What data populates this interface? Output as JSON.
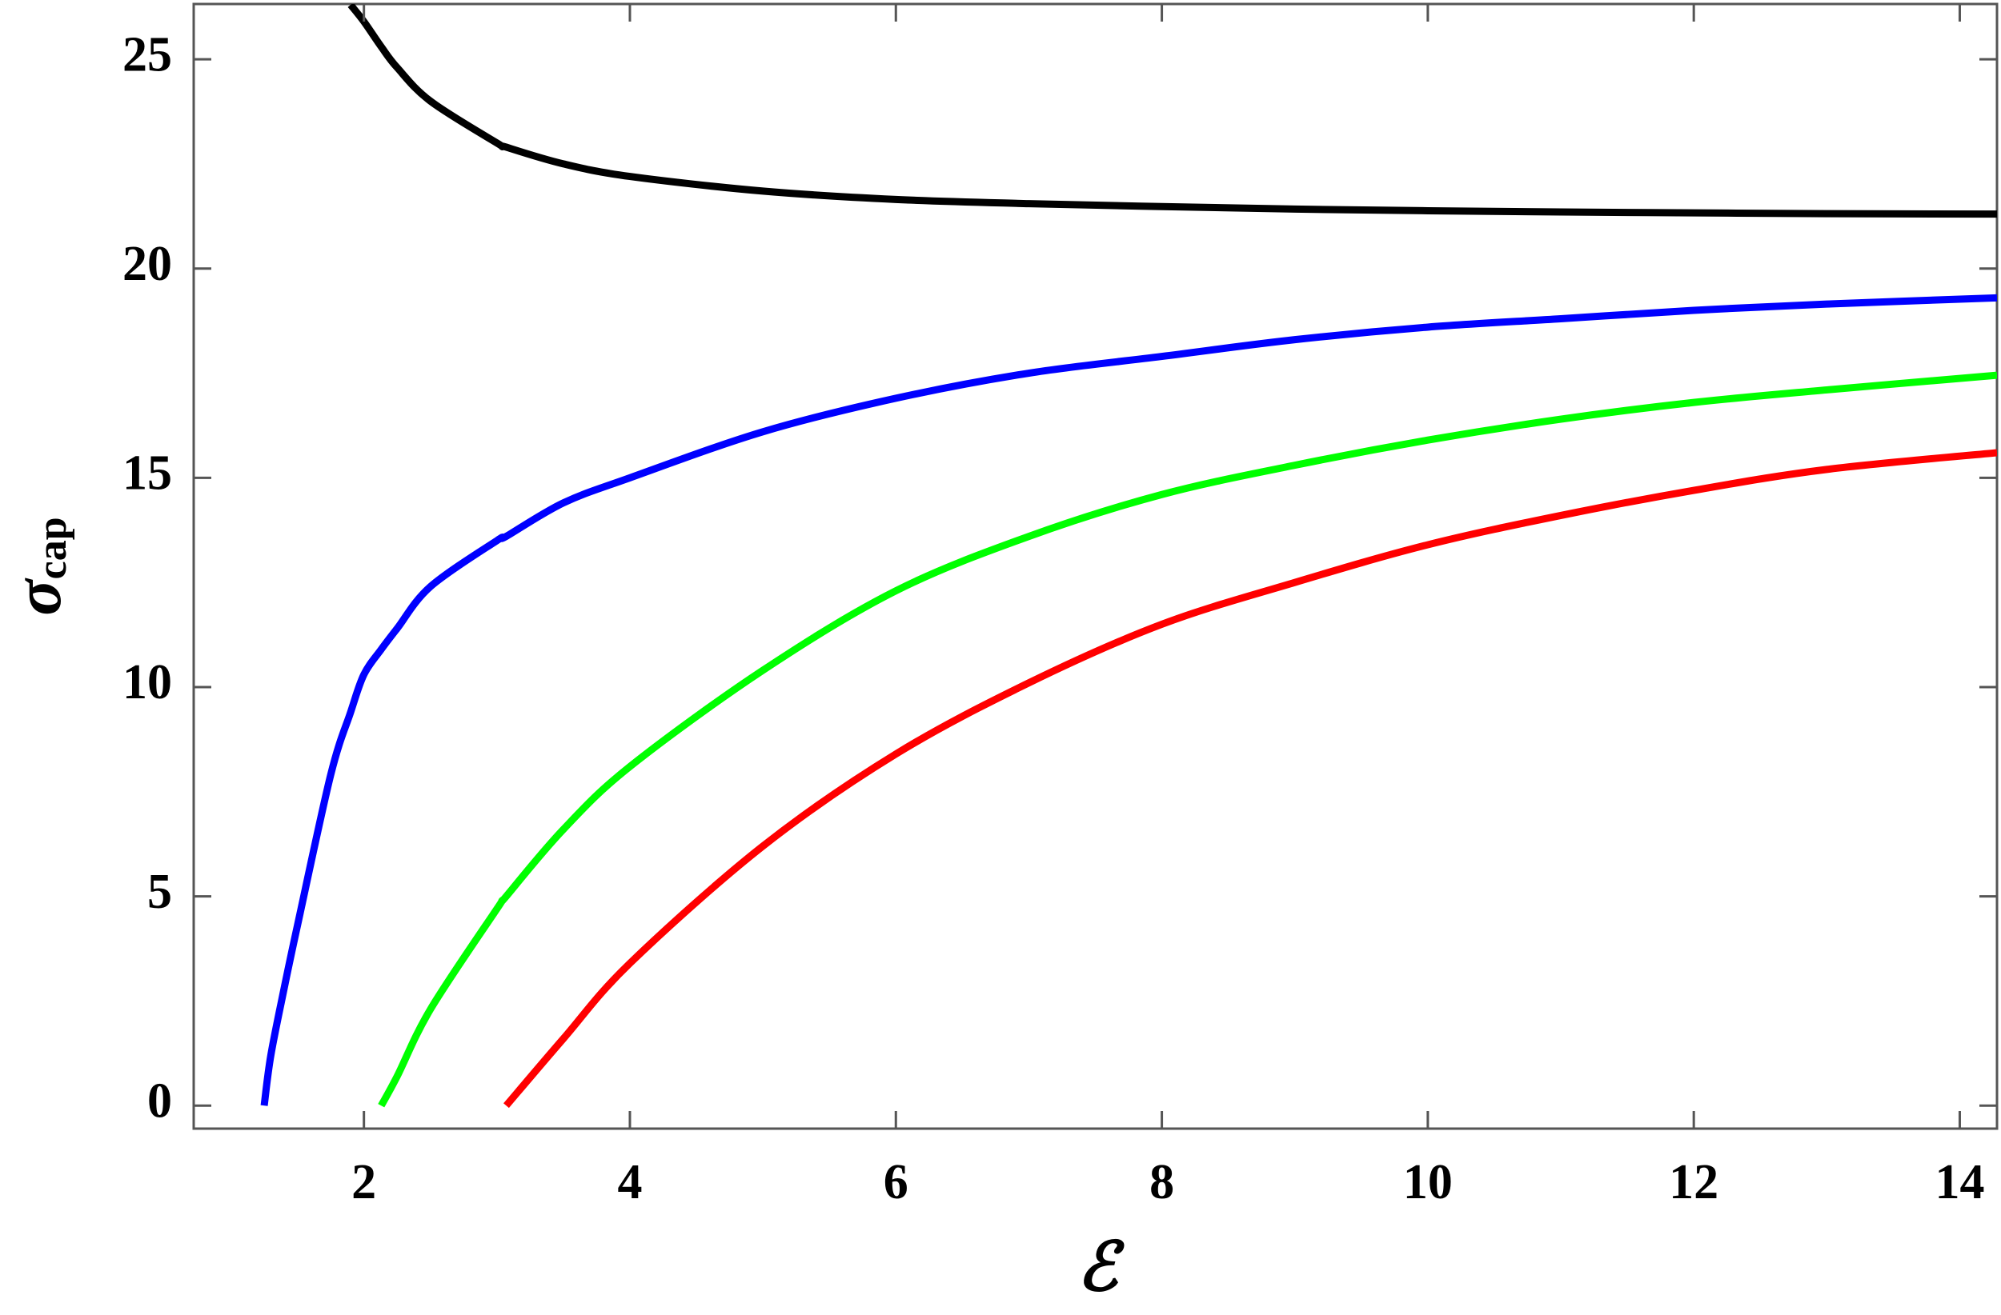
{
  "chart_data": {
    "type": "line",
    "xlabel": "ℰ",
    "ylabel": {
      "symbol": "σ",
      "subscript": "cap"
    },
    "x": [
      1.25,
      1.3,
      1.4,
      1.5,
      1.75,
      1.9,
      2,
      2.13,
      2.25,
      2.5,
      3,
      3.07,
      3.5,
      4,
      5,
      6,
      7,
      8,
      9,
      10,
      11,
      12,
      13,
      14.28
    ],
    "series": [
      {
        "color": "#000000",
        "values": [
          null,
          null,
          null,
          null,
          null,
          26.3,
          25.9,
          25.3,
          24.8,
          24.0,
          23.0,
          22.9,
          22.5,
          22.2,
          21.85,
          21.65,
          21.55,
          21.48,
          21.42,
          21.38,
          21.35,
          21.33,
          21.31,
          21.3
        ]
      },
      {
        "color": "#0000ff",
        "values": [
          0,
          1.2,
          2.8,
          4.3,
          7.9,
          9.4,
          10.3,
          10.9,
          11.4,
          12.4,
          13.5,
          13.6,
          14.4,
          15.0,
          16.1,
          16.9,
          17.5,
          17.9,
          18.3,
          18.6,
          18.8,
          19.0,
          19.15,
          19.3
        ]
      },
      {
        "color": "#00ff00",
        "values": [
          null,
          null,
          null,
          null,
          null,
          null,
          null,
          0,
          0.7,
          2.3,
          4.7,
          5.0,
          6.6,
          8.1,
          10.4,
          12.3,
          13.6,
          14.6,
          15.3,
          15.9,
          16.4,
          16.8,
          17.1,
          17.45
        ]
      },
      {
        "color": "#ff0000",
        "values": [
          null,
          null,
          null,
          null,
          null,
          null,
          null,
          null,
          null,
          null,
          null,
          0,
          1.6,
          3.4,
          6.2,
          8.4,
          10.1,
          11.5,
          12.5,
          13.4,
          14.1,
          14.7,
          15.2,
          15.6
        ]
      }
    ],
    "xlim": [
      0.72,
      14.28
    ],
    "xticks": [
      2,
      4,
      6,
      8,
      10,
      12,
      14
    ],
    "ylim": [
      -0.55,
      26.32
    ],
    "yticks": [
      0,
      5,
      10,
      15,
      20,
      25
    ]
  }
}
